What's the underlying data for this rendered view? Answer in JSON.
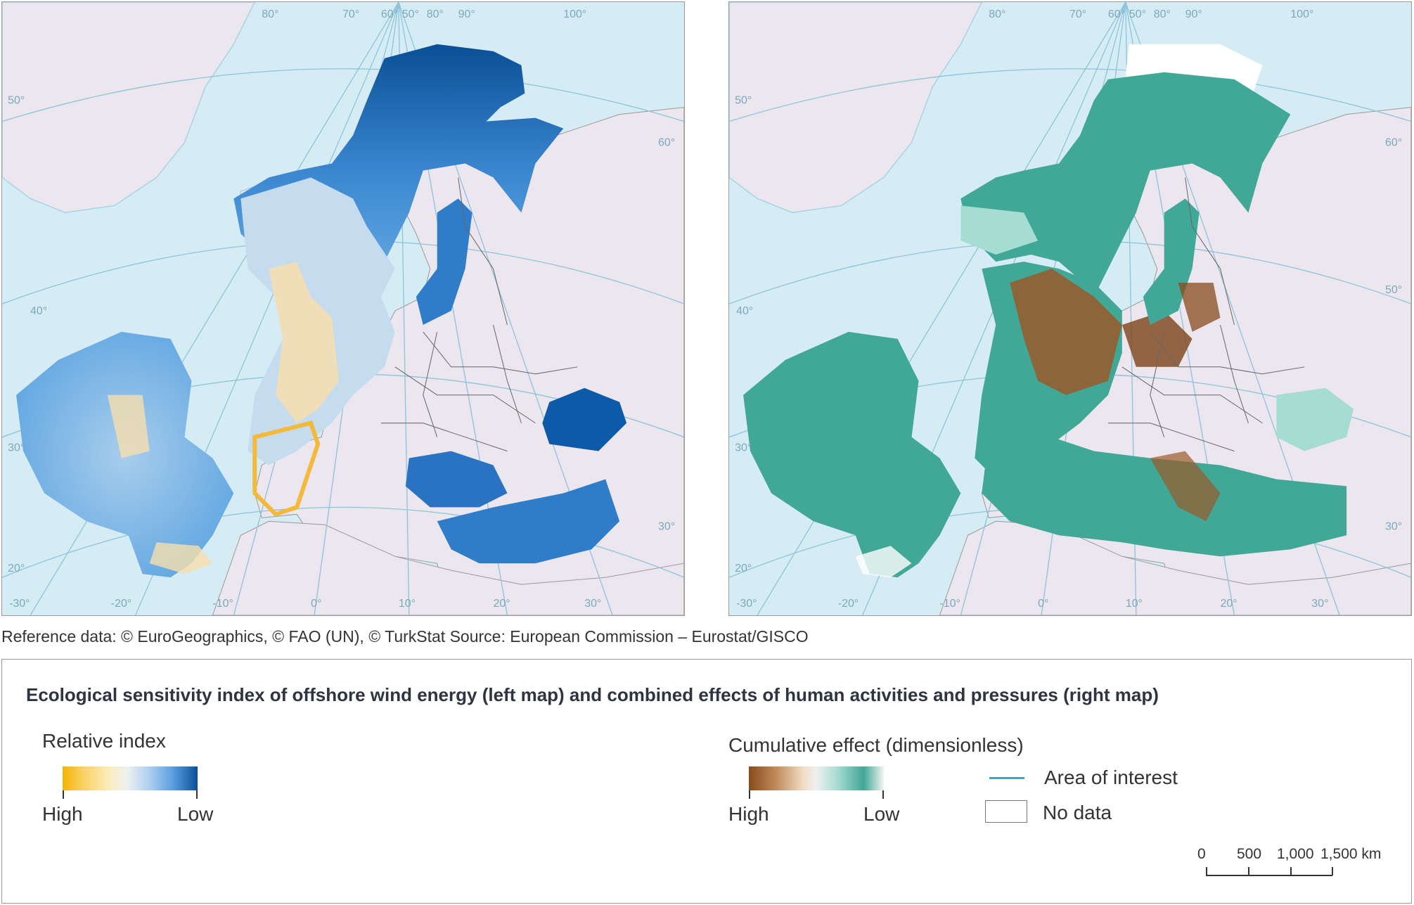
{
  "maps": {
    "left": {
      "lat_labels": [
        "50°",
        "40°",
        "30°",
        "20°"
      ],
      "lon_labels_bottom": [
        "-30°",
        "-20°",
        "-10°",
        "0°",
        "10°",
        "20°",
        "30°"
      ],
      "lon_labels_top": [
        "80°",
        "70°",
        "60°",
        "50°",
        "80°",
        "90°",
        "100°"
      ],
      "right_labels": [
        "60°",
        "30°"
      ]
    },
    "right": {
      "lat_labels": [
        "50°",
        "40°",
        "30°",
        "20°"
      ],
      "lon_labels_bottom": [
        "-30°",
        "-20°",
        "-10°",
        "0°",
        "10°",
        "20°",
        "30°"
      ],
      "lon_labels_top": [
        "80°",
        "70°",
        "60°",
        "50°",
        "80°",
        "90°",
        "100°"
      ],
      "right_labels": [
        "60°",
        "50°",
        "30°"
      ]
    },
    "colors": {
      "ocean": "#d6ecf5",
      "land": "#ece6ef",
      "graticule": "#8cc4da",
      "border": "#555555",
      "sensitivity_high": "#f6b400",
      "sensitivity_low": "#0a4f96",
      "effect_high": "#8a4a1c",
      "effect_low": "#41a796"
    }
  },
  "source_text": "Reference data: © EuroGeographics, © FAO (UN), © TurkStat Source: European Commission – Eurostat/GISCO",
  "legend": {
    "title": "Ecological sensitivity index of offshore wind energy (left map) and combined effects of human activities and pressures (right map)",
    "left": {
      "heading": "Relative index",
      "high": "High",
      "low": "Low"
    },
    "right": {
      "heading": "Cumulative effect (dimensionless)",
      "high": "High",
      "low": "Low"
    },
    "area_of_interest": "Area of interest",
    "no_data": "No data",
    "scale": {
      "labels": [
        "0",
        "500",
        "1,000",
        "1,500 km"
      ]
    }
  }
}
